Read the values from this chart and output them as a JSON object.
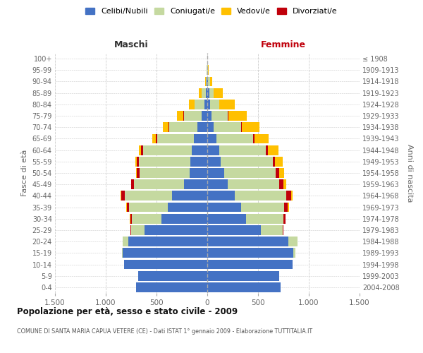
{
  "age_groups_bottom_to_top": [
    "0-4",
    "5-9",
    "10-14",
    "15-19",
    "20-24",
    "25-29",
    "30-34",
    "35-39",
    "40-44",
    "45-49",
    "50-54",
    "55-59",
    "60-64",
    "65-69",
    "70-74",
    "75-79",
    "80-84",
    "85-89",
    "90-94",
    "95-99",
    "100+"
  ],
  "birth_years_bottom_to_top": [
    "2004-2008",
    "1999-2003",
    "1994-1998",
    "1989-1993",
    "1984-1988",
    "1979-1983",
    "1974-1978",
    "1969-1973",
    "1964-1968",
    "1959-1963",
    "1954-1958",
    "1949-1953",
    "1944-1948",
    "1939-1943",
    "1934-1938",
    "1929-1933",
    "1924-1928",
    "1919-1923",
    "1914-1918",
    "1909-1913",
    "≤ 1908"
  ],
  "maschi": {
    "celibi": [
      700,
      680,
      820,
      830,
      780,
      620,
      450,
      390,
      350,
      230,
      175,
      165,
      155,
      130,
      100,
      55,
      25,
      15,
      5,
      2,
      0
    ],
    "coniugati": [
      0,
      0,
      2,
      10,
      50,
      130,
      290,
      380,
      465,
      490,
      490,
      510,
      480,
      365,
      275,
      175,
      100,
      40,
      10,
      3,
      0
    ],
    "vedovi": [
      0,
      0,
      0,
      0,
      0,
      0,
      1,
      1,
      2,
      3,
      5,
      10,
      20,
      35,
      55,
      65,
      55,
      30,
      5,
      2,
      0
    ],
    "divorziati": [
      0,
      0,
      0,
      0,
      2,
      5,
      20,
      25,
      35,
      28,
      30,
      20,
      18,
      12,
      10,
      5,
      2,
      0,
      0,
      0,
      0
    ]
  },
  "femmine": {
    "nubili": [
      720,
      710,
      840,
      850,
      800,
      530,
      380,
      330,
      270,
      200,
      165,
      135,
      115,
      90,
      65,
      40,
      25,
      20,
      10,
      3,
      0
    ],
    "coniugate": [
      0,
      0,
      2,
      15,
      90,
      210,
      370,
      430,
      510,
      510,
      510,
      510,
      460,
      360,
      265,
      160,
      90,
      45,
      15,
      3,
      0
    ],
    "vedove": [
      0,
      0,
      0,
      0,
      0,
      2,
      4,
      8,
      15,
      25,
      50,
      70,
      105,
      140,
      175,
      185,
      155,
      90,
      25,
      8,
      2
    ],
    "divorziate": [
      0,
      0,
      0,
      0,
      2,
      8,
      20,
      35,
      48,
      40,
      35,
      25,
      20,
      15,
      10,
      5,
      2,
      0,
      0,
      0,
      0
    ]
  },
  "colors": {
    "celibi": "#4472c4",
    "coniugati": "#c5d9a0",
    "vedovi": "#ffc000",
    "divorziati": "#c0000b"
  },
  "title": "Popolazione per età, sesso e stato civile - 2009",
  "subtitle": "COMUNE DI SANTA MARIA CAPUA VETERE (CE) - Dati ISTAT 1° gennaio 2009 - Elaborazione TUTTITALIA.IT",
  "xlabel_left": "Maschi",
  "xlabel_right": "Femmine",
  "ylabel_left": "Fasce di età",
  "ylabel_right": "Anni di nascita",
  "xlim": 1500,
  "xticks": [
    -1500,
    -1000,
    -500,
    0,
    500,
    1000,
    1500
  ],
  "xticklabels": [
    "1.500",
    "1.000",
    "500",
    "0",
    "500",
    "1.000",
    "1.500"
  ],
  "background_color": "#ffffff",
  "grid_color": "#cccccc",
  "legend_labels": [
    "Celibi/Nubili",
    "Coniugati/e",
    "Vedovi/e",
    "Divorziati/e"
  ]
}
